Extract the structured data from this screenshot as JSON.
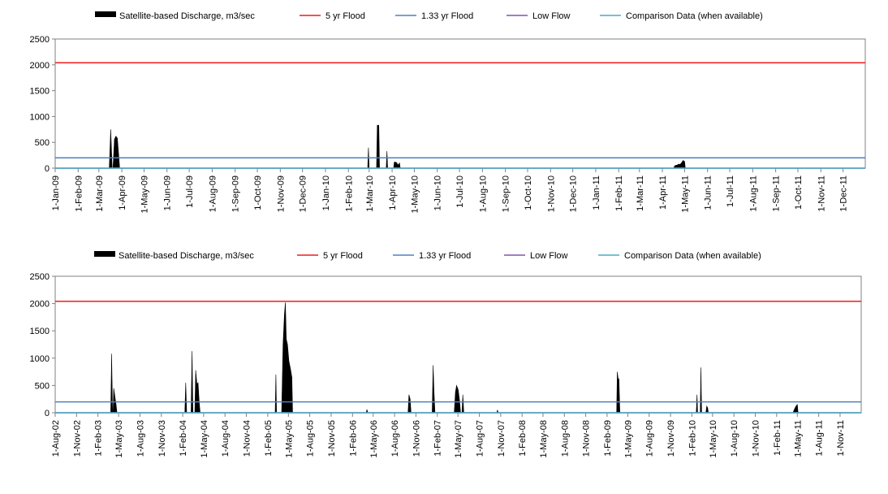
{
  "legend": [
    {
      "label": "Satellite-based Discharge, m3/sec",
      "color": "#000000",
      "kind": "area"
    },
    {
      "label": "5 yr Flood",
      "color": "#ee1c1c",
      "kind": "line"
    },
    {
      "label": "1.33 yr Flood",
      "color": "#4f81bd",
      "kind": "line"
    },
    {
      "label": "Low Flow",
      "color": "#7e57a8",
      "kind": "line"
    },
    {
      "label": "Comparison Data (when available)",
      "color": "#4bacc6",
      "kind": "line"
    }
  ],
  "chart_data": [
    {
      "type": "area",
      "title": "",
      "xlabel": "",
      "ylabel": "",
      "ylim": [
        0,
        2500
      ],
      "yticks": [
        "0",
        "500",
        "1000",
        "1500",
        "2000",
        "2500"
      ],
      "grid": false,
      "legend_position": "top",
      "x_range": [
        "1-Jan-09",
        "31-Dec-11"
      ],
      "xticks": [
        "1-Jan-09",
        "1-Feb-09",
        "1-Mar-09",
        "1-Apr-09",
        "1-May-09",
        "1-Jun-09",
        "1-Jul-09",
        "1-Aug-09",
        "1-Sep-09",
        "1-Oct-09",
        "1-Nov-09",
        "1-Dec-09",
        "1-Jan-10",
        "1-Feb-10",
        "1-Mar-10",
        "1-Apr-10",
        "1-May-10",
        "1-Jun-10",
        "1-Jul-10",
        "1-Aug-10",
        "1-Sep-10",
        "1-Oct-10",
        "1-Nov-10",
        "1-Dec-10",
        "1-Jan-11",
        "1-Feb-11",
        "1-Mar-11",
        "1-Apr-11",
        "1-May-11",
        "1-Jun-11",
        "1-Jul-11",
        "1-Aug-11",
        "1-Sep-11",
        "1-Oct-11",
        "1-Nov-11",
        "1-Dec-11"
      ],
      "series": [
        {
          "values": [
            [
              "2009-01-01",
              0
            ],
            [
              "2009-03-15",
              0
            ],
            [
              "2009-03-17",
              750
            ],
            [
              "2009-03-19",
              0
            ],
            [
              "2009-03-20",
              0
            ],
            [
              "2009-03-22",
              560
            ],
            [
              "2009-03-24",
              620
            ],
            [
              "2009-03-26",
              580
            ],
            [
              "2009-03-28",
              200
            ],
            [
              "2009-03-29",
              0
            ],
            [
              "2010-02-27",
              0
            ],
            [
              "2010-02-28",
              400
            ],
            [
              "2010-03-01",
              0
            ],
            [
              "2010-03-11",
              0
            ],
            [
              "2010-03-12",
              830
            ],
            [
              "2010-03-14",
              830
            ],
            [
              "2010-03-15",
              0
            ],
            [
              "2010-03-24",
              0
            ],
            [
              "2010-03-25",
              330
            ],
            [
              "2010-03-26",
              0
            ],
            [
              "2010-04-03",
              0
            ],
            [
              "2010-04-04",
              120
            ],
            [
              "2010-04-07",
              110
            ],
            [
              "2010-04-09",
              60
            ],
            [
              "2010-04-11",
              100
            ],
            [
              "2010-04-12",
              0
            ],
            [
              "2011-04-16",
              0
            ],
            [
              "2011-04-18",
              50
            ],
            [
              "2011-04-21",
              60
            ],
            [
              "2011-04-23",
              80
            ],
            [
              "2011-04-25",
              70
            ],
            [
              "2011-04-27",
              110
            ],
            [
              "2011-04-29",
              150
            ],
            [
              "2011-05-01",
              130
            ],
            [
              "2011-05-02",
              0
            ],
            [
              "2011-12-31",
              0
            ]
          ]
        },
        {
          "values": [
            [
              "2009-01-01",
              2040
            ],
            [
              "2011-12-31",
              2040
            ]
          ]
        },
        {
          "values": [
            [
              "2009-01-01",
              200
            ],
            [
              "2011-12-31",
              200
            ]
          ]
        },
        {
          "values": [
            [
              "2009-01-01",
              0
            ],
            [
              "2011-12-31",
              0
            ]
          ]
        },
        {
          "values": [
            [
              "2009-01-01",
              0
            ],
            [
              "2011-12-31",
              0
            ]
          ]
        }
      ]
    },
    {
      "type": "area",
      "title": "",
      "xlabel": "",
      "ylabel": "",
      "ylim": [
        0,
        2500
      ],
      "yticks": [
        "0",
        "500",
        "1000",
        "1500",
        "2000",
        "2500"
      ],
      "grid": false,
      "legend_position": "top",
      "x_range": [
        "1-Aug-02",
        "31-Jan-12"
      ],
      "xticks": [
        "1-Aug-02",
        "1-Nov-02",
        "1-Feb-03",
        "1-May-03",
        "1-Aug-03",
        "1-Nov-03",
        "1-Feb-04",
        "1-May-04",
        "1-Aug-04",
        "1-Nov-04",
        "1-Feb-05",
        "1-May-05",
        "1-Aug-05",
        "1-Nov-05",
        "1-Feb-06",
        "1-May-06",
        "1-Aug-06",
        "1-Nov-06",
        "1-Feb-07",
        "1-May-07",
        "1-Aug-07",
        "1-Nov-07",
        "1-Feb-08",
        "1-May-08",
        "1-Aug-08",
        "1-Nov-08",
        "1-Feb-09",
        "1-May-09",
        "1-Aug-09",
        "1-Nov-09",
        "1-Feb-10",
        "1-May-10",
        "1-Aug-10",
        "1-Nov-10",
        "1-Feb-11",
        "1-May-11",
        "1-Aug-11",
        "1-Nov-11"
      ],
      "series": [
        {
          "values": [
            [
              "2002-08-01",
              0
            ],
            [
              "2003-03-28",
              0
            ],
            [
              "2003-04-01",
              1080
            ],
            [
              "2003-04-05",
              0
            ],
            [
              "2003-04-07",
              0
            ],
            [
              "2003-04-10",
              450
            ],
            [
              "2003-04-15",
              300
            ],
            [
              "2003-04-20",
              150
            ],
            [
              "2003-04-24",
              0
            ],
            [
              "2004-02-10",
              0
            ],
            [
              "2004-02-14",
              550
            ],
            [
              "2004-02-18",
              0
            ],
            [
              "2004-03-08",
              0
            ],
            [
              "2004-03-12",
              1130
            ],
            [
              "2004-03-16",
              0
            ],
            [
              "2004-03-24",
              0
            ],
            [
              "2004-03-28",
              780
            ],
            [
              "2004-04-02",
              520
            ],
            [
              "2004-04-07",
              550
            ],
            [
              "2004-04-12",
              200
            ],
            [
              "2004-04-16",
              0
            ],
            [
              "2005-03-05",
              0
            ],
            [
              "2005-03-08",
              700
            ],
            [
              "2005-03-11",
              0
            ],
            [
              "2005-04-02",
              0
            ],
            [
              "2005-04-08",
              1250
            ],
            [
              "2005-04-14",
              1800
            ],
            [
              "2005-04-18",
              2020
            ],
            [
              "2005-04-22",
              1350
            ],
            [
              "2005-04-27",
              1250
            ],
            [
              "2005-05-03",
              950
            ],
            [
              "2005-05-10",
              800
            ],
            [
              "2005-05-16",
              650
            ],
            [
              "2005-05-19",
              0
            ],
            [
              "2006-04-01",
              0
            ],
            [
              "2006-04-04",
              60
            ],
            [
              "2006-04-08",
              0
            ],
            [
              "2006-09-28",
              0
            ],
            [
              "2006-10-02",
              330
            ],
            [
              "2006-10-07",
              250
            ],
            [
              "2006-10-11",
              0
            ],
            [
              "2007-01-10",
              0
            ],
            [
              "2007-01-14",
              870
            ],
            [
              "2007-01-18",
              380
            ],
            [
              "2007-01-22",
              0
            ],
            [
              "2007-04-15",
              0
            ],
            [
              "2007-04-20",
              380
            ],
            [
              "2007-04-25",
              500
            ],
            [
              "2007-05-02",
              420
            ],
            [
              "2007-05-08",
              220
            ],
            [
              "2007-05-12",
              0
            ],
            [
              "2007-05-18",
              0
            ],
            [
              "2007-05-22",
              330
            ],
            [
              "2007-05-26",
              0
            ],
            [
              "2007-10-15",
              0
            ],
            [
              "2007-10-18",
              50
            ],
            [
              "2007-10-21",
              0
            ],
            [
              "2009-03-14",
              0
            ],
            [
              "2009-03-17",
              750
            ],
            [
              "2009-03-21",
              600
            ],
            [
              "2009-03-24",
              620
            ],
            [
              "2009-03-28",
              0
            ],
            [
              "2010-02-20",
              0
            ],
            [
              "2010-02-23",
              330
            ],
            [
              "2010-02-26",
              0
            ],
            [
              "2010-03-09",
              0
            ],
            [
              "2010-03-12",
              830
            ],
            [
              "2010-03-15",
              0
            ],
            [
              "2010-04-02",
              0
            ],
            [
              "2010-04-06",
              120
            ],
            [
              "2010-04-10",
              90
            ],
            [
              "2010-04-13",
              0
            ],
            [
              "2011-04-12",
              0
            ],
            [
              "2011-04-18",
              60
            ],
            [
              "2011-04-25",
              120
            ],
            [
              "2011-05-01",
              150
            ],
            [
              "2011-05-04",
              0
            ],
            [
              "2012-01-31",
              0
            ]
          ]
        },
        {
          "values": [
            [
              "2002-08-01",
              2040
            ],
            [
              "2012-01-31",
              2040
            ]
          ]
        },
        {
          "values": [
            [
              "2002-08-01",
              200
            ],
            [
              "2012-01-31",
              200
            ]
          ]
        },
        {
          "values": [
            [
              "2002-08-01",
              0
            ],
            [
              "2012-01-31",
              0
            ]
          ]
        },
        {
          "values": [
            [
              "2002-08-01",
              0
            ],
            [
              "2012-01-31",
              0
            ]
          ]
        }
      ]
    }
  ]
}
